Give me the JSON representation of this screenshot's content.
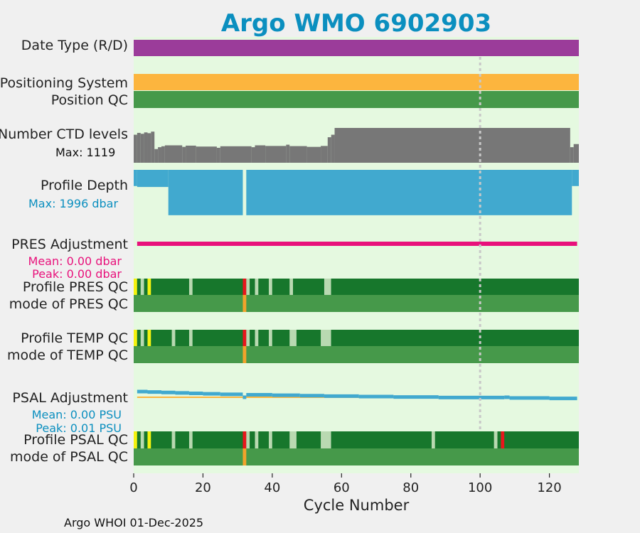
{
  "title": "Argo WMO 6902903",
  "footer": "Argo WHOI 01-Dec-2025",
  "colors": {
    "background": "#f0f0f0",
    "panel": "#e5f9e0",
    "title": "#0b8fbf",
    "date_type": "#9b3c9a",
    "positioning": "#fcb53e",
    "position_qc": "#46994a",
    "ctd": "#777777",
    "depth": "#41a9cf",
    "pres_adj": "#e8117b",
    "psal_adj": "#41a9cf",
    "psal_adj_line": "#fcb53e",
    "qc_dark": "#17772c",
    "qc_light": "#b9d9b1",
    "qc_yellow": "#f4f20f",
    "qc_red": "#e8161c",
    "qc_orange": "#f2a32b",
    "mode_green": "#46994a",
    "ref_line": "#c8c8c8"
  },
  "chart_data": {
    "type": "table",
    "xlabel": "Cycle Number",
    "xlim": [
      0,
      128.5
    ],
    "xticks": [
      0,
      20,
      40,
      60,
      80,
      100,
      120
    ],
    "reference_cycle": 100,
    "rows": {
      "date_type": {
        "label": "Date Type (R/D)",
        "segments": [
          {
            "from": 0,
            "to": 128.5,
            "value": "R"
          }
        ]
      },
      "positioning": {
        "label": "Positioning System"
      },
      "position_qc": {
        "label": "Position QC"
      },
      "ctd": {
        "label": "Number CTD levels",
        "max_text": "Max: 1119",
        "max": 1119,
        "steps": [
          {
            "from": 0,
            "to": 1,
            "value": 900
          },
          {
            "from": 1,
            "to": 2,
            "value": 960
          },
          {
            "from": 2,
            "to": 3,
            "value": 930
          },
          {
            "from": 3,
            "to": 4,
            "value": 975
          },
          {
            "from": 4,
            "to": 5,
            "value": 950
          },
          {
            "from": 5,
            "to": 6,
            "value": 1000
          },
          {
            "from": 6,
            "to": 7,
            "value": 440
          },
          {
            "from": 7,
            "to": 8,
            "value": 500
          },
          {
            "from": 8,
            "to": 9,
            "value": 530
          },
          {
            "from": 9,
            "to": 14,
            "value": 560
          },
          {
            "from": 14,
            "to": 15,
            "value": 510
          },
          {
            "from": 15,
            "to": 18,
            "value": 550
          },
          {
            "from": 18,
            "to": 24,
            "value": 520
          },
          {
            "from": 24,
            "to": 25,
            "value": 480
          },
          {
            "from": 25,
            "to": 34,
            "value": 530
          },
          {
            "from": 34,
            "to": 35,
            "value": 500
          },
          {
            "from": 35,
            "to": 38,
            "value": 560
          },
          {
            "from": 38,
            "to": 44,
            "value": 540
          },
          {
            "from": 44,
            "to": 45,
            "value": 580
          },
          {
            "from": 45,
            "to": 50,
            "value": 535
          },
          {
            "from": 50,
            "to": 54,
            "value": 510
          },
          {
            "from": 54,
            "to": 56,
            "value": 540
          },
          {
            "from": 56,
            "to": 57,
            "value": 820
          },
          {
            "from": 57,
            "to": 58,
            "value": 900
          },
          {
            "from": 58,
            "to": 126,
            "value": 1119
          },
          {
            "from": 126,
            "to": 127,
            "value": 500
          },
          {
            "from": 127,
            "to": 128.5,
            "value": 600
          }
        ]
      },
      "depth": {
        "label": "Profile Depth",
        "max_text": "Max: 1996 dbar",
        "max": 1996,
        "steps": [
          {
            "from": 0,
            "to": 1,
            "value": 700
          },
          {
            "from": 1,
            "to": 10,
            "value": 740
          },
          {
            "from": 10,
            "to": 31.5,
            "value": 1960
          },
          {
            "from": 32.5,
            "to": 126.5,
            "value": 1960
          },
          {
            "from": 126.5,
            "to": 128.5,
            "value": 700
          }
        ]
      },
      "pres_adj": {
        "label": "PRES Adjustment",
        "mean_text": "Mean: 0.00 dbar",
        "peak_text": "Peak: 0.00 dbar",
        "range": [
          1,
          128
        ]
      },
      "pres_qc": {
        "label": "Profile PRES QC",
        "segments": [
          {
            "from": 0,
            "to": 1,
            "q": "yellow"
          },
          {
            "from": 1,
            "to": 2,
            "q": "dark"
          },
          {
            "from": 2,
            "to": 3,
            "q": "light"
          },
          {
            "from": 3,
            "to": 4,
            "q": "dark"
          },
          {
            "from": 4,
            "to": 5,
            "q": "yellow"
          },
          {
            "from": 5,
            "to": 16,
            "q": "dark"
          },
          {
            "from": 16,
            "to": 17,
            "q": "light"
          },
          {
            "from": 17,
            "to": 31.5,
            "q": "dark"
          },
          {
            "from": 31.5,
            "to": 32.5,
            "q": "red"
          },
          {
            "from": 32.5,
            "to": 33.5,
            "q": "light"
          },
          {
            "from": 33.5,
            "to": 35,
            "q": "dark"
          },
          {
            "from": 35,
            "to": 36,
            "q": "light"
          },
          {
            "from": 36,
            "to": 39,
            "q": "dark"
          },
          {
            "from": 39,
            "to": 40,
            "q": "light"
          },
          {
            "from": 40,
            "to": 45,
            "q": "dark"
          },
          {
            "from": 45,
            "to": 46,
            "q": "light"
          },
          {
            "from": 46,
            "to": 55,
            "q": "dark"
          },
          {
            "from": 55,
            "to": 57,
            "q": "light"
          },
          {
            "from": 57,
            "to": 128.5,
            "q": "dark"
          }
        ]
      },
      "pres_mode": {
        "label": "mode of PRES QC",
        "segments": [
          {
            "from": 31.5,
            "to": 32.5,
            "q": "orange"
          }
        ]
      },
      "temp_qc": {
        "label": "Profile TEMP QC",
        "segments": [
          {
            "from": 0,
            "to": 1,
            "q": "yellow"
          },
          {
            "from": 1,
            "to": 2,
            "q": "dark"
          },
          {
            "from": 2,
            "to": 3,
            "q": "light"
          },
          {
            "from": 3,
            "to": 4,
            "q": "dark"
          },
          {
            "from": 4,
            "to": 5,
            "q": "yellow"
          },
          {
            "from": 5,
            "to": 11,
            "q": "dark"
          },
          {
            "from": 11,
            "to": 12,
            "q": "light"
          },
          {
            "from": 12,
            "to": 16,
            "q": "dark"
          },
          {
            "from": 16,
            "to": 17,
            "q": "light"
          },
          {
            "from": 17,
            "to": 31.5,
            "q": "dark"
          },
          {
            "from": 31.5,
            "to": 32.5,
            "q": "red"
          },
          {
            "from": 32.5,
            "to": 33.5,
            "q": "light"
          },
          {
            "from": 33.5,
            "to": 35,
            "q": "dark"
          },
          {
            "from": 35,
            "to": 36,
            "q": "light"
          },
          {
            "from": 36,
            "to": 39,
            "q": "dark"
          },
          {
            "from": 39,
            "to": 40,
            "q": "light"
          },
          {
            "from": 40,
            "to": 45,
            "q": "dark"
          },
          {
            "from": 45,
            "to": 47,
            "q": "light"
          },
          {
            "from": 47,
            "to": 54,
            "q": "dark"
          },
          {
            "from": 54,
            "to": 57,
            "q": "light"
          },
          {
            "from": 57,
            "to": 128.5,
            "q": "dark"
          }
        ]
      },
      "temp_mode": {
        "label": "mode of TEMP QC",
        "segments": [
          {
            "from": 31.5,
            "to": 32.5,
            "q": "orange"
          }
        ]
      },
      "psal_adj": {
        "label": "PSAL Adjustment",
        "mean_text": "Mean: 0.00 PSU",
        "peak_text": "Peak: 0.01 PSU",
        "baseline_range": [
          1,
          108
        ],
        "max": 0.01,
        "steps": [
          {
            "from": 1,
            "to": 4,
            "value": 0.0089
          },
          {
            "from": 4,
            "to": 8,
            "value": 0.0082
          },
          {
            "from": 8,
            "to": 12,
            "value": 0.0075
          },
          {
            "from": 12,
            "to": 16,
            "value": 0.0068
          },
          {
            "from": 16,
            "to": 20,
            "value": 0.0061
          },
          {
            "from": 20,
            "to": 25,
            "value": 0.0054
          },
          {
            "from": 25,
            "to": 31.5,
            "value": 0.0046
          },
          {
            "from": 31.5,
            "to": 32.5,
            "value": 0
          },
          {
            "from": 32.5,
            "to": 40,
            "value": 0.0039
          },
          {
            "from": 40,
            "to": 48,
            "value": 0.0032
          },
          {
            "from": 48,
            "to": 55,
            "value": 0.0025
          },
          {
            "from": 55,
            "to": 65,
            "value": 0.0018
          },
          {
            "from": 65,
            "to": 75,
            "value": 0.0011
          },
          {
            "from": 75,
            "to": 88,
            "value": 0.0004
          },
          {
            "from": 88,
            "to": 107,
            "value": -0.0004
          },
          {
            "from": 107,
            "to": 108.5,
            "value": 0
          },
          {
            "from": 108.5,
            "to": 120,
            "value": -0.0011
          },
          {
            "from": 120,
            "to": 128,
            "value": -0.0018
          }
        ]
      },
      "psal_qc": {
        "label": "Profile PSAL QC",
        "segments": [
          {
            "from": 0,
            "to": 1,
            "q": "yellow"
          },
          {
            "from": 1,
            "to": 2,
            "q": "dark"
          },
          {
            "from": 2,
            "to": 3,
            "q": "light"
          },
          {
            "from": 3,
            "to": 4,
            "q": "dark"
          },
          {
            "from": 4,
            "to": 5,
            "q": "yellow"
          },
          {
            "from": 5,
            "to": 11,
            "q": "dark"
          },
          {
            "from": 11,
            "to": 12,
            "q": "light"
          },
          {
            "from": 12,
            "to": 16,
            "q": "dark"
          },
          {
            "from": 16,
            "to": 17,
            "q": "light"
          },
          {
            "from": 17,
            "to": 31.5,
            "q": "dark"
          },
          {
            "from": 31.5,
            "to": 32.5,
            "q": "red"
          },
          {
            "from": 32.5,
            "to": 33.5,
            "q": "light"
          },
          {
            "from": 33.5,
            "to": 35,
            "q": "dark"
          },
          {
            "from": 35,
            "to": 36,
            "q": "light"
          },
          {
            "from": 36,
            "to": 39,
            "q": "dark"
          },
          {
            "from": 39,
            "to": 40,
            "q": "light"
          },
          {
            "from": 40,
            "to": 45,
            "q": "dark"
          },
          {
            "from": 45,
            "to": 47,
            "q": "light"
          },
          {
            "from": 47,
            "to": 54,
            "q": "dark"
          },
          {
            "from": 54,
            "to": 57,
            "q": "light"
          },
          {
            "from": 57,
            "to": 86,
            "q": "dark"
          },
          {
            "from": 86,
            "to": 87,
            "q": "light"
          },
          {
            "from": 87,
            "to": 104,
            "q": "dark"
          },
          {
            "from": 104,
            "to": 105,
            "q": "light"
          },
          {
            "from": 105,
            "to": 106,
            "q": "dark"
          },
          {
            "from": 106,
            "to": 107,
            "q": "red"
          },
          {
            "from": 107,
            "to": 128.5,
            "q": "dark"
          }
        ]
      },
      "psal_mode": {
        "label": "mode of PSAL QC",
        "segments": [
          {
            "from": 31.5,
            "to": 32.5,
            "q": "orange"
          }
        ]
      }
    }
  }
}
